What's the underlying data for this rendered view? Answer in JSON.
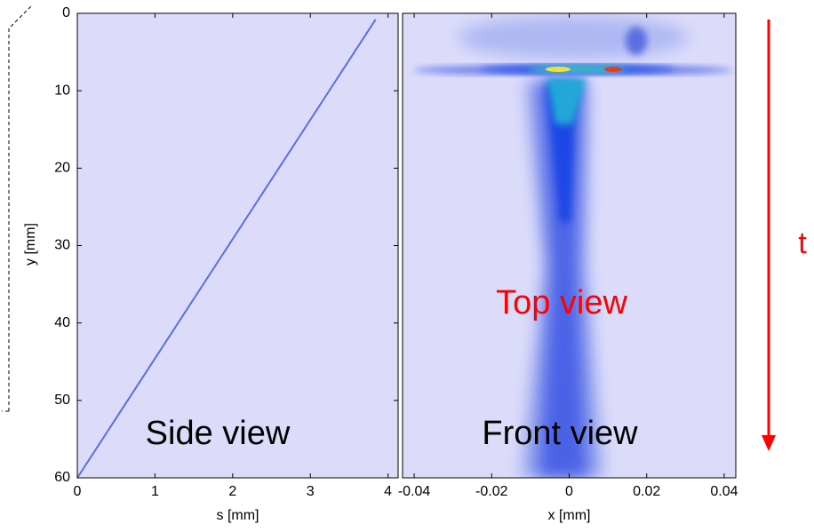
{
  "chart_data": [
    {
      "type": "line",
      "x_label": "s [mm]",
      "y_label": "y [mm]",
      "xlim": [
        0,
        4.13
      ],
      "ylim": [
        60,
        0
      ],
      "xticks": [
        0,
        1,
        2,
        3,
        4
      ],
      "yticks": [
        0,
        10,
        20,
        30,
        40,
        50,
        60
      ],
      "series": [
        {
          "color": "#5a6ee8",
          "x": [
            0,
            3.84
          ],
          "values": [
            60,
            0.8
          ]
        }
      ],
      "annotations": [
        "Side view"
      ]
    },
    {
      "type": "heatmap",
      "x_label": "x [mm]",
      "xlim": [
        -0.043,
        0.043
      ],
      "ylim": [
        60,
        0
      ],
      "xticks": [
        -0.04,
        -0.02,
        0,
        0.02,
        0.04
      ],
      "annotations": [
        "Front view",
        "Top view",
        "t"
      ]
    }
  ]
}
